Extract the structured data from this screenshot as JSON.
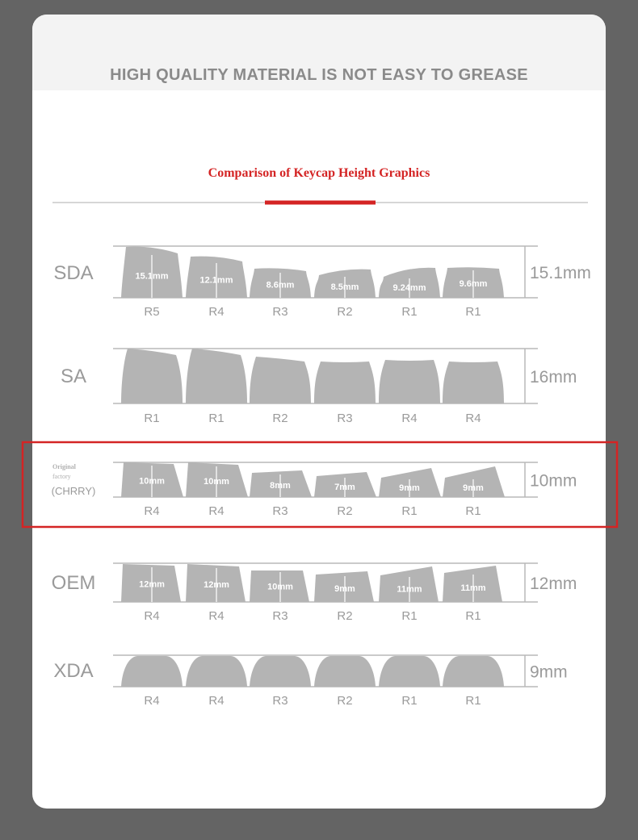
{
  "header": {
    "title": "HIGH QUALITY MATERIAL IS NOT EASY TO GREASE",
    "subtitle": "Comparison of Keycap Height Graphics"
  },
  "colors": {
    "background": "#646464",
    "keycap": "#b4b4b4",
    "line": "#b9b9b9",
    "accent_red": "#d42424",
    "text_gray": "#9a9a9a"
  },
  "profiles": [
    {
      "name": "SDA",
      "height": "15.1mm",
      "keys": [
        {
          "row": "R5",
          "label": "15.1mm"
        },
        {
          "row": "R4",
          "label": "12.1mm"
        },
        {
          "row": "R3",
          "label": "8.6mm"
        },
        {
          "row": "R2",
          "label": "8.5mm"
        },
        {
          "row": "R1",
          "label": "9.24mm"
        },
        {
          "row": "R1",
          "label": "9.6mm"
        }
      ]
    },
    {
      "name": "SA",
      "height": "16mm",
      "keys": [
        {
          "row": "R1",
          "label": ""
        },
        {
          "row": "R1",
          "label": ""
        },
        {
          "row": "R2",
          "label": ""
        },
        {
          "row": "R3",
          "label": ""
        },
        {
          "row": "R4",
          "label": ""
        },
        {
          "row": "R4",
          "label": ""
        }
      ]
    },
    {
      "name": "(CHRRY)",
      "name_note": "Original factory",
      "height": "10mm",
      "highlighted": true,
      "keys": [
        {
          "row": "R4",
          "label": "10mm"
        },
        {
          "row": "R4",
          "label": "10mm"
        },
        {
          "row": "R3",
          "label": "8mm"
        },
        {
          "row": "R2",
          "label": "7mm"
        },
        {
          "row": "R1",
          "label": "9mm"
        },
        {
          "row": "R1",
          "label": "9mm"
        }
      ]
    },
    {
      "name": "OEM",
      "height": "12mm",
      "keys": [
        {
          "row": "R4",
          "label": "12mm"
        },
        {
          "row": "R4",
          "label": "12mm"
        },
        {
          "row": "R3",
          "label": "10mm"
        },
        {
          "row": "R2",
          "label": "9mm"
        },
        {
          "row": "R1",
          "label": "11mm"
        },
        {
          "row": "R1",
          "label": "11mm"
        }
      ]
    },
    {
      "name": "XDA",
      "height": "9mm",
      "keys": [
        {
          "row": "R4",
          "label": ""
        },
        {
          "row": "R4",
          "label": ""
        },
        {
          "row": "R3",
          "label": ""
        },
        {
          "row": "R2",
          "label": ""
        },
        {
          "row": "R1",
          "label": ""
        },
        {
          "row": "R1",
          "label": ""
        }
      ]
    }
  ]
}
